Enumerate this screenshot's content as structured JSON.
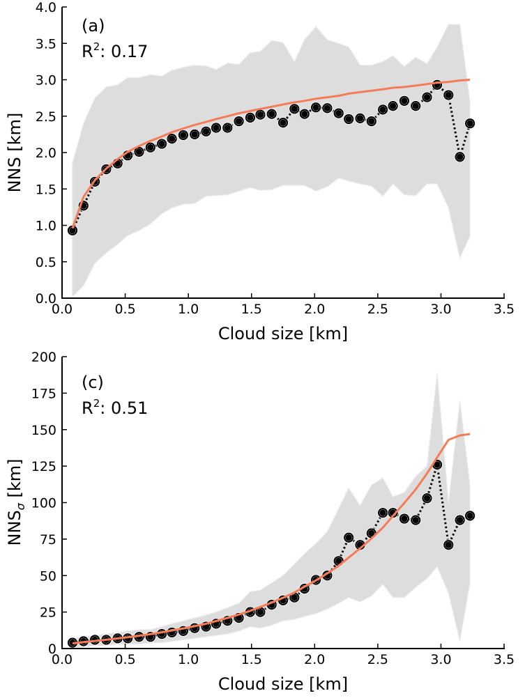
{
  "chart_data": [
    {
      "type": "line",
      "panel_label": "(a)",
      "annotation": "R²: 0.17",
      "annotation_base": "R",
      "annotation_sup": "2",
      "annotation_rest": ": 0.17",
      "xlabel": "Cloud size [km]",
      "ylabel": "NNS [km]",
      "xlim": [
        0,
        3.5
      ],
      "ylim": [
        0,
        4.0
      ],
      "xticks": [
        "0.0",
        "0.5",
        "1.0",
        "1.5",
        "2.0",
        "2.5",
        "3.0",
        "3.5"
      ],
      "xtick_values": [
        0,
        0.5,
        1.0,
        1.5,
        2.0,
        2.5,
        3.0,
        3.5
      ],
      "yticks": [
        "0.0",
        "0.5",
        "1.0",
        "1.5",
        "2.0",
        "2.5",
        "3.0",
        "3.5",
        "4.0"
      ],
      "ytick_values": [
        0,
        0.5,
        1.0,
        1.5,
        2.0,
        2.5,
        3.0,
        3.5,
        4.0
      ],
      "grid": false,
      "colors": {
        "band": "#dddddd",
        "fit": "#f47c56",
        "points": "#000000"
      },
      "x": [
        0.083,
        0.17,
        0.26,
        0.35,
        0.44,
        0.52,
        0.61,
        0.7,
        0.79,
        0.87,
        0.96,
        1.05,
        1.14,
        1.22,
        1.31,
        1.4,
        1.49,
        1.57,
        1.66,
        1.75,
        1.84,
        1.92,
        2.01,
        2.1,
        2.19,
        2.27,
        2.36,
        2.45,
        2.54,
        2.62,
        2.71,
        2.8,
        2.89,
        2.97,
        3.06,
        3.15,
        3.23
      ],
      "series": [
        {
          "name": "mean",
          "style": "dotted-markers",
          "values": [
            0.93,
            1.27,
            1.6,
            1.77,
            1.85,
            1.96,
            2.01,
            2.07,
            2.12,
            2.19,
            2.24,
            2.25,
            2.29,
            2.34,
            2.34,
            2.43,
            2.48,
            2.52,
            2.53,
            2.41,
            2.6,
            2.53,
            2.62,
            2.61,
            2.54,
            2.46,
            2.47,
            2.43,
            2.59,
            2.64,
            2.71,
            2.64,
            2.76,
            2.93,
            2.79,
            1.94,
            2.4
          ]
        },
        {
          "name": "band_upper",
          "style": "fill",
          "values": [
            1.86,
            2.4,
            2.75,
            2.9,
            2.93,
            3.03,
            3.03,
            3.07,
            3.05,
            3.13,
            3.17,
            3.2,
            3.19,
            3.14,
            3.23,
            3.21,
            3.37,
            3.39,
            3.54,
            3.51,
            3.25,
            3.55,
            3.73,
            3.55,
            3.5,
            3.45,
            3.2,
            3.2,
            3.25,
            3.33,
            3.18,
            3.31,
            3.22,
            3.45,
            3.76,
            3.76,
            2.7
          ]
        },
        {
          "name": "band_lower",
          "style": "fill",
          "values": [
            0.02,
            0.17,
            0.48,
            0.62,
            0.74,
            0.86,
            0.93,
            1.02,
            1.16,
            1.24,
            1.29,
            1.3,
            1.4,
            1.41,
            1.42,
            1.47,
            1.52,
            1.48,
            1.49,
            1.55,
            1.55,
            1.55,
            1.47,
            1.53,
            1.65,
            1.61,
            1.57,
            1.54,
            1.4,
            1.57,
            1.42,
            1.41,
            1.57,
            1.57,
            1.24,
            0.55,
            0.85
          ]
        },
        {
          "name": "fit",
          "style": "line",
          "model": "log",
          "values": [
            0.96,
            1.39,
            1.62,
            1.78,
            1.91,
            2.01,
            2.09,
            2.16,
            2.22,
            2.28,
            2.33,
            2.38,
            2.42,
            2.46,
            2.5,
            2.54,
            2.57,
            2.6,
            2.63,
            2.66,
            2.69,
            2.71,
            2.74,
            2.76,
            2.78,
            2.81,
            2.83,
            2.85,
            2.87,
            2.89,
            2.9,
            2.92,
            2.94,
            2.96,
            2.97,
            2.99,
            3.0
          ]
        }
      ]
    },
    {
      "type": "line",
      "panel_label": "(c)",
      "annotation": "R²: 0.51",
      "annotation_base": "R",
      "annotation_sup": "2",
      "annotation_rest": ": 0.51",
      "xlabel": "Cloud size [km]",
      "ylabel": "NNSσ [km]",
      "ylabel_base": "NNS",
      "ylabel_sub": "σ",
      "ylabel_rest": " [km]",
      "xlim": [
        0,
        3.5
      ],
      "ylim": [
        0,
        200
      ],
      "xticks": [
        "0.0",
        "0.5",
        "1.0",
        "1.5",
        "2.0",
        "2.5",
        "3.0",
        "3.5"
      ],
      "xtick_values": [
        0,
        0.5,
        1.0,
        1.5,
        2.0,
        2.5,
        3.0,
        3.5
      ],
      "yticks": [
        "0",
        "25",
        "50",
        "75",
        "100",
        "125",
        "150",
        "175",
        "200"
      ],
      "ytick_values": [
        0,
        25,
        50,
        75,
        100,
        125,
        150,
        175,
        200
      ],
      "grid": false,
      "colors": {
        "band": "#dddddd",
        "fit": "#f47c56",
        "points": "#000000"
      },
      "x": [
        0.083,
        0.17,
        0.26,
        0.35,
        0.44,
        0.52,
        0.61,
        0.7,
        0.79,
        0.87,
        0.96,
        1.05,
        1.14,
        1.22,
        1.31,
        1.4,
        1.49,
        1.57,
        1.66,
        1.75,
        1.84,
        1.92,
        2.01,
        2.1,
        2.19,
        2.27,
        2.36,
        2.45,
        2.54,
        2.62,
        2.71,
        2.8,
        2.89,
        2.97,
        3.06,
        3.15,
        3.23
      ],
      "series": [
        {
          "name": "mean",
          "style": "dotted-markers",
          "values": [
            4,
            5,
            6,
            6,
            7,
            7,
            8,
            8,
            10,
            11,
            12,
            14,
            15,
            17,
            19,
            21,
            25,
            25,
            30,
            33,
            35,
            41,
            47,
            50,
            60,
            76,
            71,
            79,
            93,
            93,
            89,
            88,
            103,
            126,
            71,
            88,
            91
          ]
        },
        {
          "name": "band_upper",
          "style": "fill",
          "values": [
            7,
            8,
            9,
            10,
            11,
            12,
            13,
            13,
            15,
            17,
            19,
            21,
            23,
            25,
            28,
            31,
            39,
            40,
            45,
            50,
            58,
            65,
            72,
            80,
            96,
            110,
            98,
            112,
            117,
            104,
            107,
            118,
            125,
            189,
            100,
            170,
            112
          ]
        },
        {
          "name": "band_lower",
          "style": "fill",
          "values": [
            1,
            1,
            2,
            2,
            3,
            3,
            3,
            4,
            4,
            5,
            6,
            7,
            8,
            9,
            10,
            12,
            15,
            14,
            16,
            19,
            20,
            22,
            24,
            27,
            31,
            35,
            32,
            36,
            44,
            35,
            35,
            42,
            48,
            56,
            38,
            5,
            45
          ]
        },
        {
          "name": "fit",
          "style": "line",
          "model": "exp",
          "values": [
            3.6,
            4.4,
            5.2,
            6.0,
            6.9,
            7.8,
            8.8,
            9.9,
            11.1,
            12.4,
            13.8,
            15.3,
            17.0,
            18.9,
            21.0,
            23.3,
            25.8,
            28.5,
            31.5,
            34.8,
            38.4,
            42.4,
            46.7,
            51.5,
            56.7,
            62.4,
            68.6,
            75.4,
            82.8,
            90.9,
            99.7,
            109,
            120,
            131,
            143,
            146,
            147
          ]
        }
      ]
    }
  ]
}
